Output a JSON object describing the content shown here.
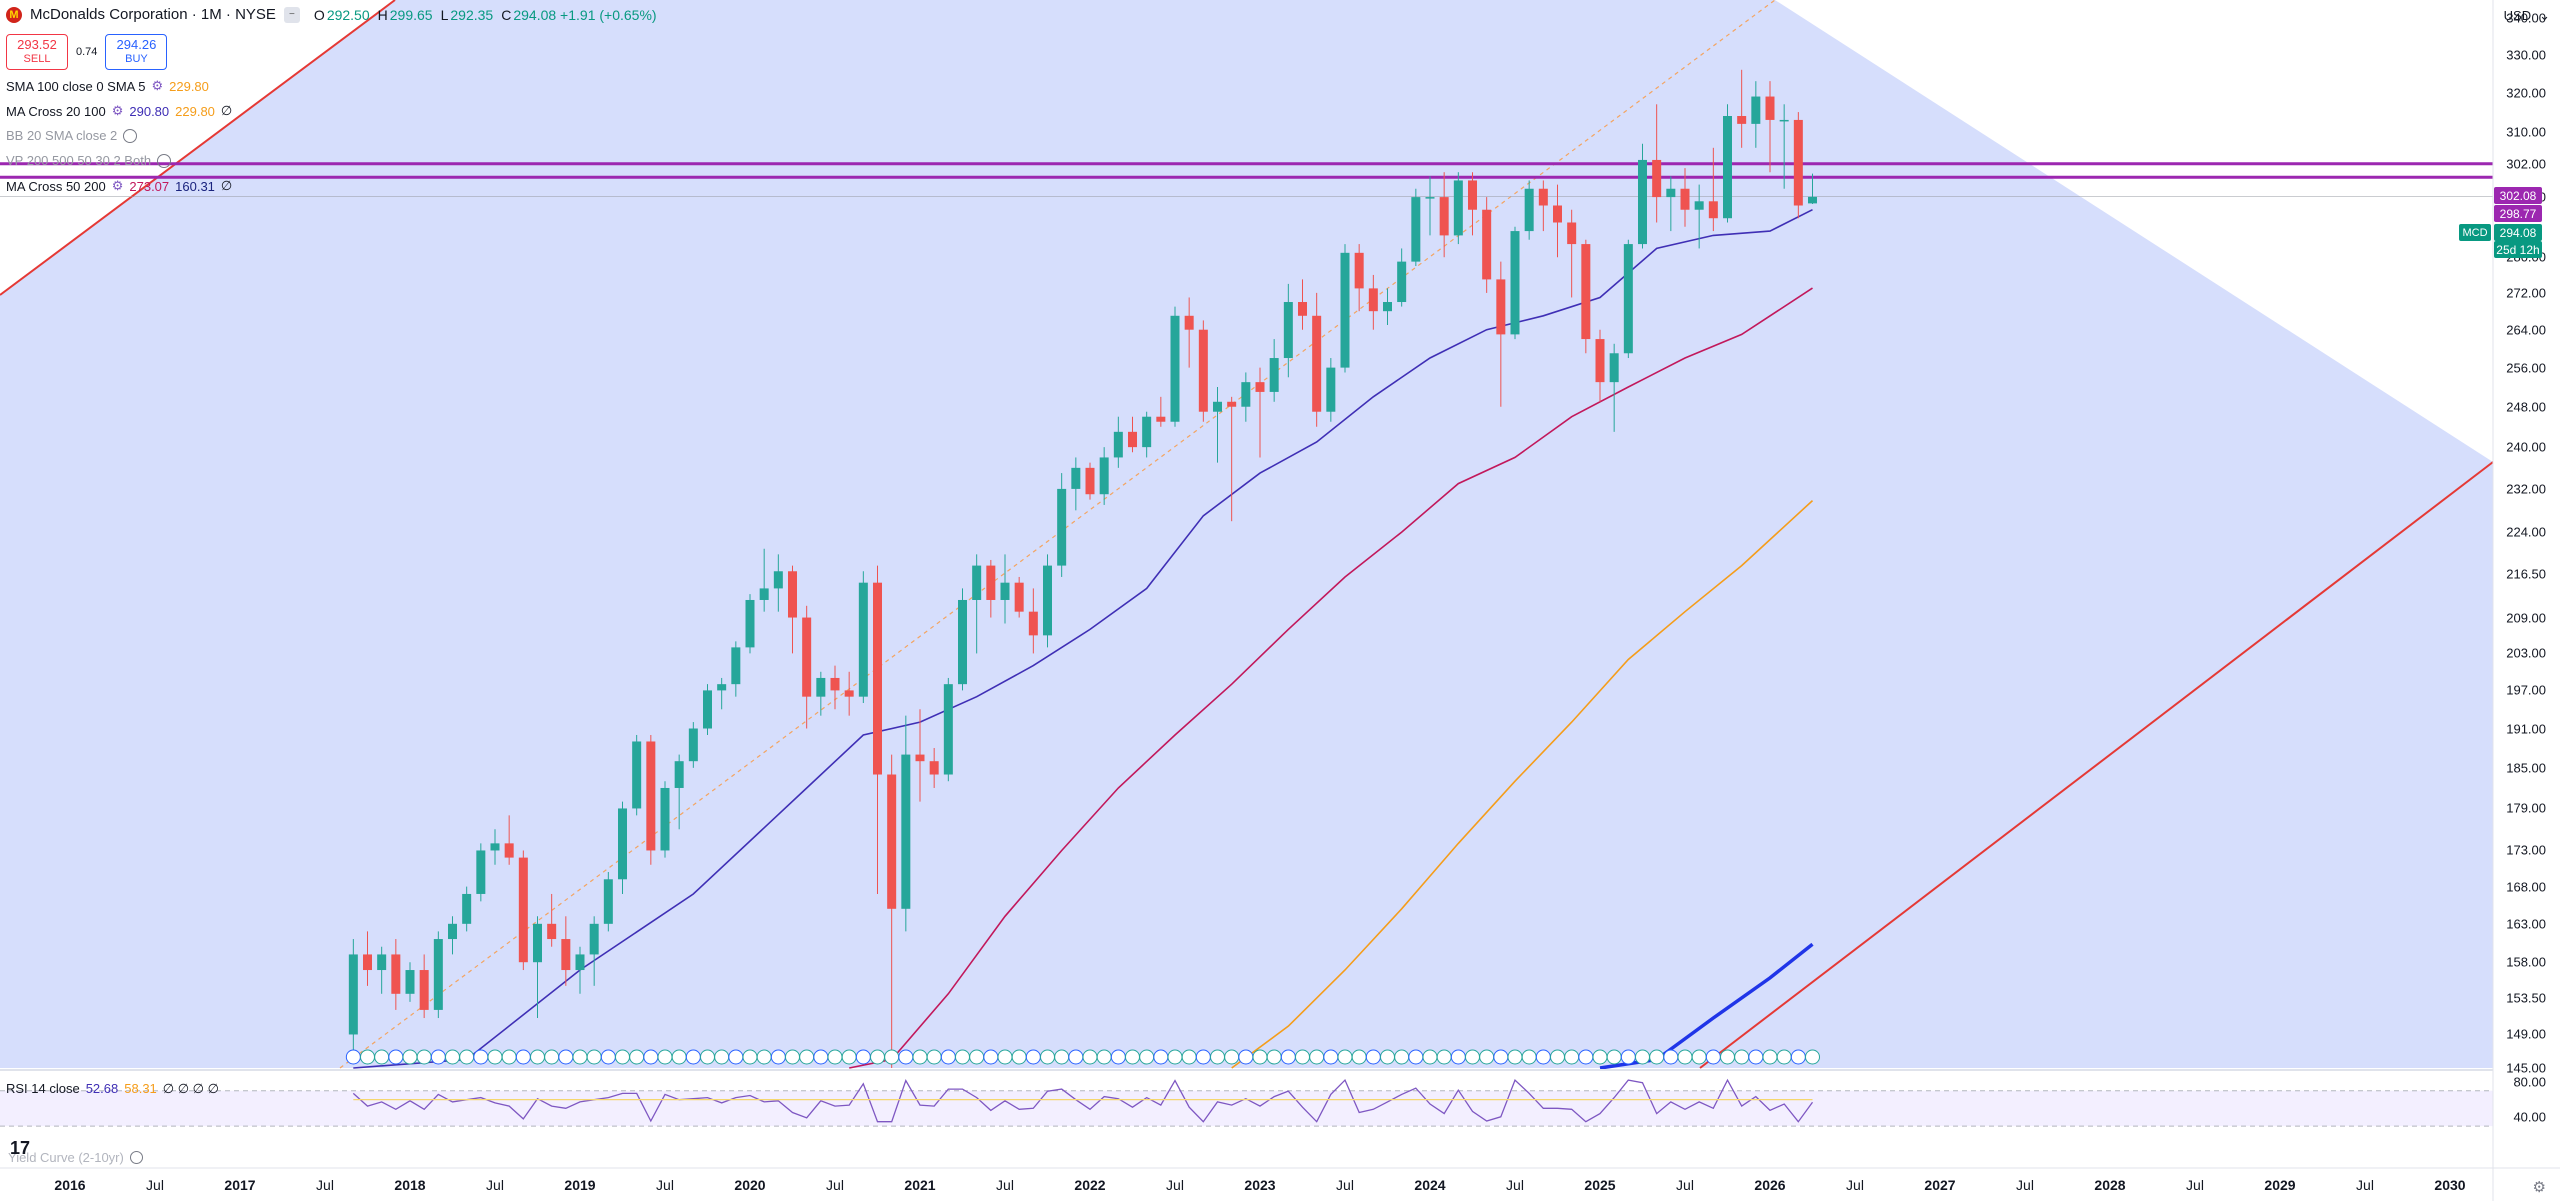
{
  "header": {
    "title": "McDonalds Corporation · 1M · NYSE",
    "logo_letter": "M",
    "ohlc": [
      {
        "k": "O",
        "v": "292.50"
      },
      {
        "k": "H",
        "v": "299.65"
      },
      {
        "k": "L",
        "v": "292.35"
      },
      {
        "k": "C",
        "v": "294.08 +1.91 (+0.65%)"
      }
    ],
    "collapse_glyph": "−"
  },
  "trade": {
    "sell_price": "293.52",
    "sell_label": "SELL",
    "spread": "0.74",
    "buy_price": "294.26",
    "buy_label": "BUY"
  },
  "indicators": [
    {
      "name": "SMA 100 close 0 SMA 5",
      "values": [
        "229.80"
      ],
      "colors": [
        "#f59d1a"
      ],
      "dim": false,
      "gear": true
    },
    {
      "name": "MA Cross 20 100",
      "values": [
        "290.80",
        "229.80",
        "∅"
      ],
      "colors": [
        "#3f2fb5",
        "#f59d1a",
        "#131722"
      ],
      "dim": false,
      "gear": true
    },
    {
      "name": "BB 20 SMA close 2",
      "values": [],
      "colors": [],
      "dim": true,
      "hidden_icon": true
    },
    {
      "name": "VP 200 500 50 30 2 Both",
      "values": [],
      "colors": [],
      "dim": true,
      "hidden_icon": true
    },
    {
      "name": "MA Cross 50 200",
      "values": [
        "273.07",
        "160.31",
        "∅"
      ],
      "colors": [
        "#c2185b",
        "#1a237e",
        "#131722"
      ],
      "dim": false,
      "gear": true
    }
  ],
  "rsi_legend": {
    "name": "RSI 14 close",
    "v1": "52.68",
    "v2": "58.31",
    "rest": "∅ ∅ ∅ ∅"
  },
  "yield_legend": {
    "name": "Yield Curve (2-10yr)"
  },
  "currency": {
    "label": "USD",
    "chevron": "⌄"
  },
  "price_tags": [
    {
      "value": "302.08",
      "color": "#9c27b0"
    },
    {
      "value": "298.77",
      "color": "#9c27b0"
    },
    {
      "value": "294.08",
      "color": "#089981"
    },
    {
      "value": "25d 12h",
      "color": "#089981"
    }
  ],
  "symbol_tag": "MCD",
  "gear_icon": "gear-icon",
  "tradingview_mark": "17",
  "colors": {
    "up": "#26a69a",
    "down": "#ef5350",
    "band_fill": "#d6defc",
    "ma20": "#3f2fb5",
    "ma50": "#c2185b",
    "sma100": "#f59d1a",
    "ma200": "#2035e8",
    "hline": "#9c27b0",
    "channel": "#e53935"
  },
  "chart_data": {
    "type": "candlestick",
    "title": "McDonalds Corporation · 1M · NYSE",
    "y_scale": "log",
    "ylim": [
      145,
      345
    ],
    "y_ticks": [
      "340.00",
      "330.00",
      "320.00",
      "310.00",
      "302.00",
      "294.00",
      "280.00",
      "272.00",
      "264.00",
      "256.00",
      "248.00",
      "240.00",
      "232.00",
      "224.00",
      "216.50",
      "209.00",
      "203.00",
      "197.00",
      "191.00",
      "185.00",
      "179.00",
      "173.00",
      "168.00",
      "163.00",
      "158.00",
      "153.50",
      "149.00",
      "145.00"
    ],
    "x_ticks": [
      {
        "label": "2016",
        "year": true
      },
      {
        "label": "Jul",
        "year": false
      },
      {
        "label": "2017",
        "year": true
      },
      {
        "label": "Jul",
        "year": false
      },
      {
        "label": "2018",
        "year": true
      },
      {
        "label": "Jul",
        "year": false
      },
      {
        "label": "2019",
        "year": true
      },
      {
        "label": "Jul",
        "year": false
      },
      {
        "label": "2020",
        "year": true
      },
      {
        "label": "Jul",
        "year": false
      },
      {
        "label": "2021",
        "year": true
      },
      {
        "label": "Jul",
        "year": false
      },
      {
        "label": "2022",
        "year": true
      },
      {
        "label": "Jul",
        "year": false
      },
      {
        "label": "2023",
        "year": true
      },
      {
        "label": "Jul",
        "year": false
      },
      {
        "label": "2024",
        "year": true
      },
      {
        "label": "Jul",
        "year": false
      },
      {
        "label": "2025",
        "year": true
      },
      {
        "label": "Jul",
        "year": false
      },
      {
        "label": "2026",
        "year": true
      },
      {
        "label": "Jul",
        "year": false
      },
      {
        "label": "2027",
        "year": true
      },
      {
        "label": "Jul",
        "year": false
      },
      {
        "label": "2028",
        "year": true
      },
      {
        "label": "Jul",
        "year": false
      },
      {
        "label": "2029",
        "year": true
      },
      {
        "label": "Jul",
        "year": false
      },
      {
        "label": "2030",
        "year": true
      }
    ],
    "start": "2017-09",
    "candles": [
      [
        149.0,
        161.0,
        147.0,
        159.0
      ],
      [
        159.0,
        162.0,
        155.0,
        157.0
      ],
      [
        157.0,
        160.0,
        154.0,
        159.0
      ],
      [
        159.0,
        161.0,
        152.0,
        154.0
      ],
      [
        154.0,
        158.0,
        153.0,
        157.0
      ],
      [
        157.0,
        159.0,
        151.0,
        152.0
      ],
      [
        152.0,
        162.0,
        151.0,
        161.0
      ],
      [
        161.0,
        164.0,
        159.0,
        163.0
      ],
      [
        163.0,
        168.0,
        162.0,
        167.0
      ],
      [
        167.0,
        174.0,
        166.0,
        173.0
      ],
      [
        173.0,
        176.0,
        171.0,
        174.0
      ],
      [
        174.0,
        178.0,
        171.0,
        172.0
      ],
      [
        172.0,
        173.0,
        157.0,
        158.0
      ],
      [
        158.0,
        164.0,
        151.0,
        163.0
      ],
      [
        163.0,
        167.0,
        160.0,
        161.0
      ],
      [
        161.0,
        164.0,
        155.0,
        157.0
      ],
      [
        157.0,
        160.0,
        154.0,
        159.0
      ],
      [
        159.0,
        164.0,
        155.0,
        163.0
      ],
      [
        163.0,
        170.0,
        162.0,
        169.0
      ],
      [
        169.0,
        180.0,
        167.0,
        179.0
      ],
      [
        179.0,
        190.0,
        178.0,
        189.0
      ],
      [
        189.0,
        190.0,
        171.0,
        173.0
      ],
      [
        173.0,
        183.0,
        172.0,
        182.0
      ],
      [
        182.0,
        187.0,
        176.0,
        186.0
      ],
      [
        186.0,
        192.0,
        185.0,
        191.0
      ],
      [
        191.0,
        198.0,
        190.0,
        197.0
      ],
      [
        197.0,
        199.0,
        194.0,
        198.0
      ],
      [
        198.0,
        205.0,
        196.0,
        204.0
      ],
      [
        204.0,
        213.0,
        203.0,
        212.0
      ],
      [
        212.0,
        221.0,
        210.0,
        214.0
      ],
      [
        214.0,
        220.0,
        210.0,
        217.0
      ],
      [
        217.0,
        218.0,
        203.0,
        209.0
      ],
      [
        209.0,
        211.0,
        191.0,
        196.0
      ],
      [
        196.0,
        200.0,
        193.0,
        199.0
      ],
      [
        199.0,
        201.0,
        194.0,
        197.0
      ],
      [
        197.0,
        200.0,
        193.0,
        196.0
      ],
      [
        196.0,
        217.0,
        195.0,
        215.0
      ],
      [
        215.0,
        218.0,
        167.0,
        184.0
      ],
      [
        184.0,
        187.0,
        124.0,
        165.0
      ],
      [
        165.0,
        193.0,
        162.0,
        187.0
      ],
      [
        187.0,
        194.0,
        180.0,
        186.0
      ],
      [
        186.0,
        188.0,
        182.0,
        184.0
      ],
      [
        184.0,
        199.0,
        183.0,
        198.0
      ],
      [
        198.0,
        214.0,
        197.0,
        212.0
      ],
      [
        212.0,
        220.0,
        203.0,
        218.0
      ],
      [
        218.0,
        219.0,
        209.0,
        212.0
      ],
      [
        212.0,
        220.0,
        208.0,
        215.0
      ],
      [
        215.0,
        216.0,
        209.0,
        210.0
      ],
      [
        210.0,
        214.0,
        203.0,
        206.0
      ],
      [
        206.0,
        220.0,
        204.0,
        218.0
      ],
      [
        218.0,
        235.0,
        216.0,
        232.0
      ],
      [
        232.0,
        238.0,
        228.0,
        236.0
      ],
      [
        236.0,
        237.0,
        230.0,
        231.0
      ],
      [
        231.0,
        240.0,
        229.0,
        238.0
      ],
      [
        238.0,
        246.0,
        236.0,
        243.0
      ],
      [
        243.0,
        246.0,
        239.0,
        240.0
      ],
      [
        240.0,
        247.0,
        238.0,
        246.0
      ],
      [
        246.0,
        250.0,
        244.0,
        245.0
      ],
      [
        245.0,
        269.0,
        244.0,
        267.0
      ],
      [
        267.0,
        271.0,
        256.0,
        264.0
      ],
      [
        264.0,
        266.0,
        245.0,
        247.0
      ],
      [
        247.0,
        252.0,
        237.0,
        249.0
      ],
      [
        249.0,
        250.0,
        226.0,
        248.0
      ],
      [
        248.0,
        255.0,
        245.0,
        253.0
      ],
      [
        253.0,
        256.0,
        238.0,
        251.0
      ],
      [
        251.0,
        262.0,
        249.0,
        258.0
      ],
      [
        258.0,
        274.0,
        254.0,
        270.0
      ],
      [
        270.0,
        275.0,
        264.0,
        267.0
      ],
      [
        267.0,
        272.0,
        244.0,
        247.0
      ],
      [
        247.0,
        258.0,
        245.0,
        256.0
      ],
      [
        256.0,
        283.0,
        255.0,
        281.0
      ],
      [
        281.0,
        283.0,
        268.0,
        273.0
      ],
      [
        273.0,
        276.0,
        264.0,
        268.0
      ],
      [
        268.0,
        273.0,
        265.0,
        270.0
      ],
      [
        270.0,
        282.0,
        269.0,
        279.0
      ],
      [
        279.0,
        296.0,
        278.0,
        294.0
      ],
      [
        294.0,
        299.0,
        285.0,
        294.0
      ],
      [
        294.0,
        300.0,
        280.0,
        285.0
      ],
      [
        285.0,
        300.0,
        283.0,
        298.0
      ],
      [
        298.0,
        300.0,
        285.0,
        291.0
      ],
      [
        291.0,
        294.0,
        272.0,
        275.0
      ],
      [
        275.0,
        279.0,
        248.0,
        263.0
      ],
      [
        263.0,
        287.0,
        262.0,
        286.0
      ],
      [
        286.0,
        298.0,
        284.0,
        296.0
      ],
      [
        296.0,
        298.0,
        286.0,
        292.0
      ],
      [
        292.0,
        297.0,
        280.0,
        288.0
      ],
      [
        288.0,
        291.0,
        271.0,
        283.0
      ],
      [
        283.0,
        284.0,
        259.0,
        262.0
      ],
      [
        262.0,
        264.0,
        249.0,
        253.0
      ],
      [
        253.0,
        261.0,
        243.0,
        259.0
      ],
      [
        259.0,
        284.0,
        258.0,
        283.0
      ],
      [
        283.0,
        307.0,
        282.0,
        303.0
      ],
      [
        303.0,
        317.0,
        288.0,
        294.0
      ],
      [
        294.0,
        299.0,
        286.0,
        296.0
      ],
      [
        296.0,
        301.0,
        287.0,
        291.0
      ],
      [
        291.0,
        297.0,
        282.0,
        293.0
      ],
      [
        293.0,
        306.0,
        286.0,
        289.0
      ],
      [
        289.0,
        317.0,
        288.0,
        314.0
      ],
      [
        314.0,
        326.0,
        306.0,
        312.0
      ],
      [
        312.0,
        323.0,
        306.0,
        319.0
      ],
      [
        319.0,
        323.0,
        300.0,
        313.0
      ],
      [
        313.0,
        317.0,
        296.0,
        313.0
      ],
      [
        313.0,
        315.0,
        289.0,
        292.0
      ],
      [
        292.5,
        299.65,
        292.35,
        294.08
      ]
    ],
    "ma20": [
      [
        0,
        140.0
      ],
      [
        8,
        146.0
      ],
      [
        16,
        157.0
      ],
      [
        24,
        167.0
      ],
      [
        32,
        182.0
      ],
      [
        36,
        190.0
      ],
      [
        40,
        192.0
      ],
      [
        44,
        196.0
      ],
      [
        48,
        201.0
      ],
      [
        52,
        207.0
      ],
      [
        56,
        214.0
      ],
      [
        60,
        227.0
      ],
      [
        64,
        235.0
      ],
      [
        68,
        241.0
      ],
      [
        72,
        250.0
      ],
      [
        76,
        258.0
      ],
      [
        80,
        264.0
      ],
      [
        84,
        267.0
      ],
      [
        88,
        271.0
      ],
      [
        92,
        282.0
      ],
      [
        96,
        285.0
      ],
      [
        100,
        286.0
      ],
      [
        103,
        291.0
      ]
    ],
    "ma50": [
      [
        35,
        140.0
      ],
      [
        38,
        146.0
      ],
      [
        42,
        154.0
      ],
      [
        46,
        164.0
      ],
      [
        50,
        173.0
      ],
      [
        54,
        182.0
      ],
      [
        58,
        190.0
      ],
      [
        62,
        198.0
      ],
      [
        66,
        207.0
      ],
      [
        70,
        216.0
      ],
      [
        74,
        224.0
      ],
      [
        78,
        233.0
      ],
      [
        82,
        238.0
      ],
      [
        86,
        246.0
      ],
      [
        90,
        252.0
      ],
      [
        94,
        258.0
      ],
      [
        98,
        263.0
      ],
      [
        103,
        273.07
      ]
    ],
    "sma100": [
      [
        62,
        145.0
      ],
      [
        66,
        150.0
      ],
      [
        70,
        157.0
      ],
      [
        74,
        165.0
      ],
      [
        78,
        174.0
      ],
      [
        82,
        183.0
      ],
      [
        86,
        192.0
      ],
      [
        90,
        202.0
      ],
      [
        94,
        210.0
      ],
      [
        98,
        218.0
      ],
      [
        103,
        229.8
      ]
    ],
    "ma200": [
      [
        88,
        140.0
      ],
      [
        92,
        146.0
      ],
      [
        96,
        151.0
      ],
      [
        100,
        156.0
      ],
      [
        103,
        160.31
      ]
    ],
    "hlines": [
      302.08,
      298.77
    ],
    "last_price": 294.08,
    "rsi": {
      "ylim": [
        20,
        90
      ],
      "ticks": [
        "80.00",
        "40.00"
      ],
      "levels": [
        70,
        30
      ],
      "last": 52.68
    }
  }
}
